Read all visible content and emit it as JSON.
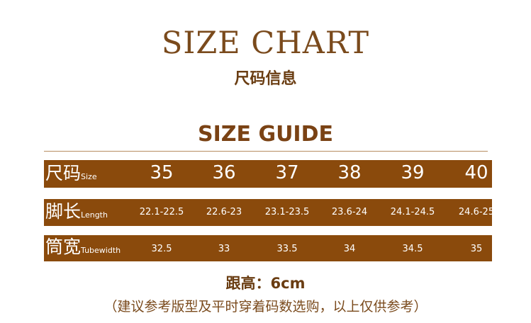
{
  "title": "SIZE CHART",
  "subtitle": "尺码信息",
  "guide_title": "SIZE GUIDE",
  "rows": [
    {
      "label_cn": "尺码",
      "label_en": "Size",
      "values": [
        "35",
        "36",
        "37",
        "38",
        "39",
        "40"
      ]
    },
    {
      "label_cn": "脚长",
      "label_en": "Length",
      "values": [
        "22.1-22.5",
        "22.6-23",
        "23.1-23.5",
        "23.6-24",
        "24.1-24.5",
        "24.6-25"
      ]
    },
    {
      "label_cn": "筒宽",
      "label_en": "Tubewidth",
      "values": [
        "32.5",
        "33",
        "33.5",
        "34",
        "34.5",
        "35"
      ]
    }
  ],
  "heel_height": "跟高：6cm",
  "note": "（建议参考版型及平时穿着码数选购，以上仅供参考）",
  "colors": {
    "bar": "#8a4a0c",
    "text": "#7a4a1c"
  }
}
